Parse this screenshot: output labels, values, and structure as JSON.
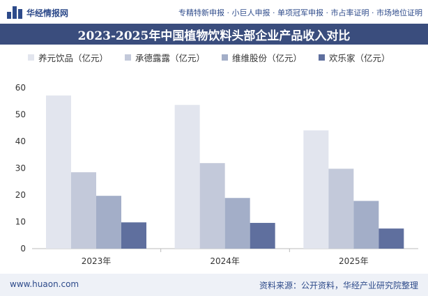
{
  "header": {
    "brand": "华经情报网",
    "nav": "专精特新申报 · 小巨人申报 · 单项冠军申报 · 市占率证明 · 市场地位证明"
  },
  "colors": {
    "title_bg": "#3a4d7d",
    "series": [
      "#e2e5ee",
      "#c3c9da",
      "#a3aec8",
      "#5f6f9e"
    ]
  },
  "chart_data": {
    "type": "bar",
    "title": "2023-2025年中国植物饮料头部企业产品收入对比",
    "categories": [
      "2023年",
      "2024年",
      "2025年"
    ],
    "series": [
      {
        "name": "养元饮品（亿元）",
        "values": [
          57.1,
          53.6,
          44.1
        ]
      },
      {
        "name": "承德露露（亿元）",
        "values": [
          28.5,
          31.9,
          29.8
        ]
      },
      {
        "name": "维维股份（亿元）",
        "values": [
          19.7,
          18.9,
          17.8
        ]
      },
      {
        "name": "欢乐家（亿元）",
        "values": [
          9.8,
          9.6,
          7.5
        ]
      }
    ],
    "ylim": [
      0,
      60
    ],
    "yticks": [
      0,
      10,
      20,
      30,
      40,
      50,
      60
    ],
    "grid": false,
    "legend": "top"
  },
  "footer": {
    "left": "www.huaon.com",
    "right": "资料来源：公开资料，华经产业研究院整理"
  }
}
